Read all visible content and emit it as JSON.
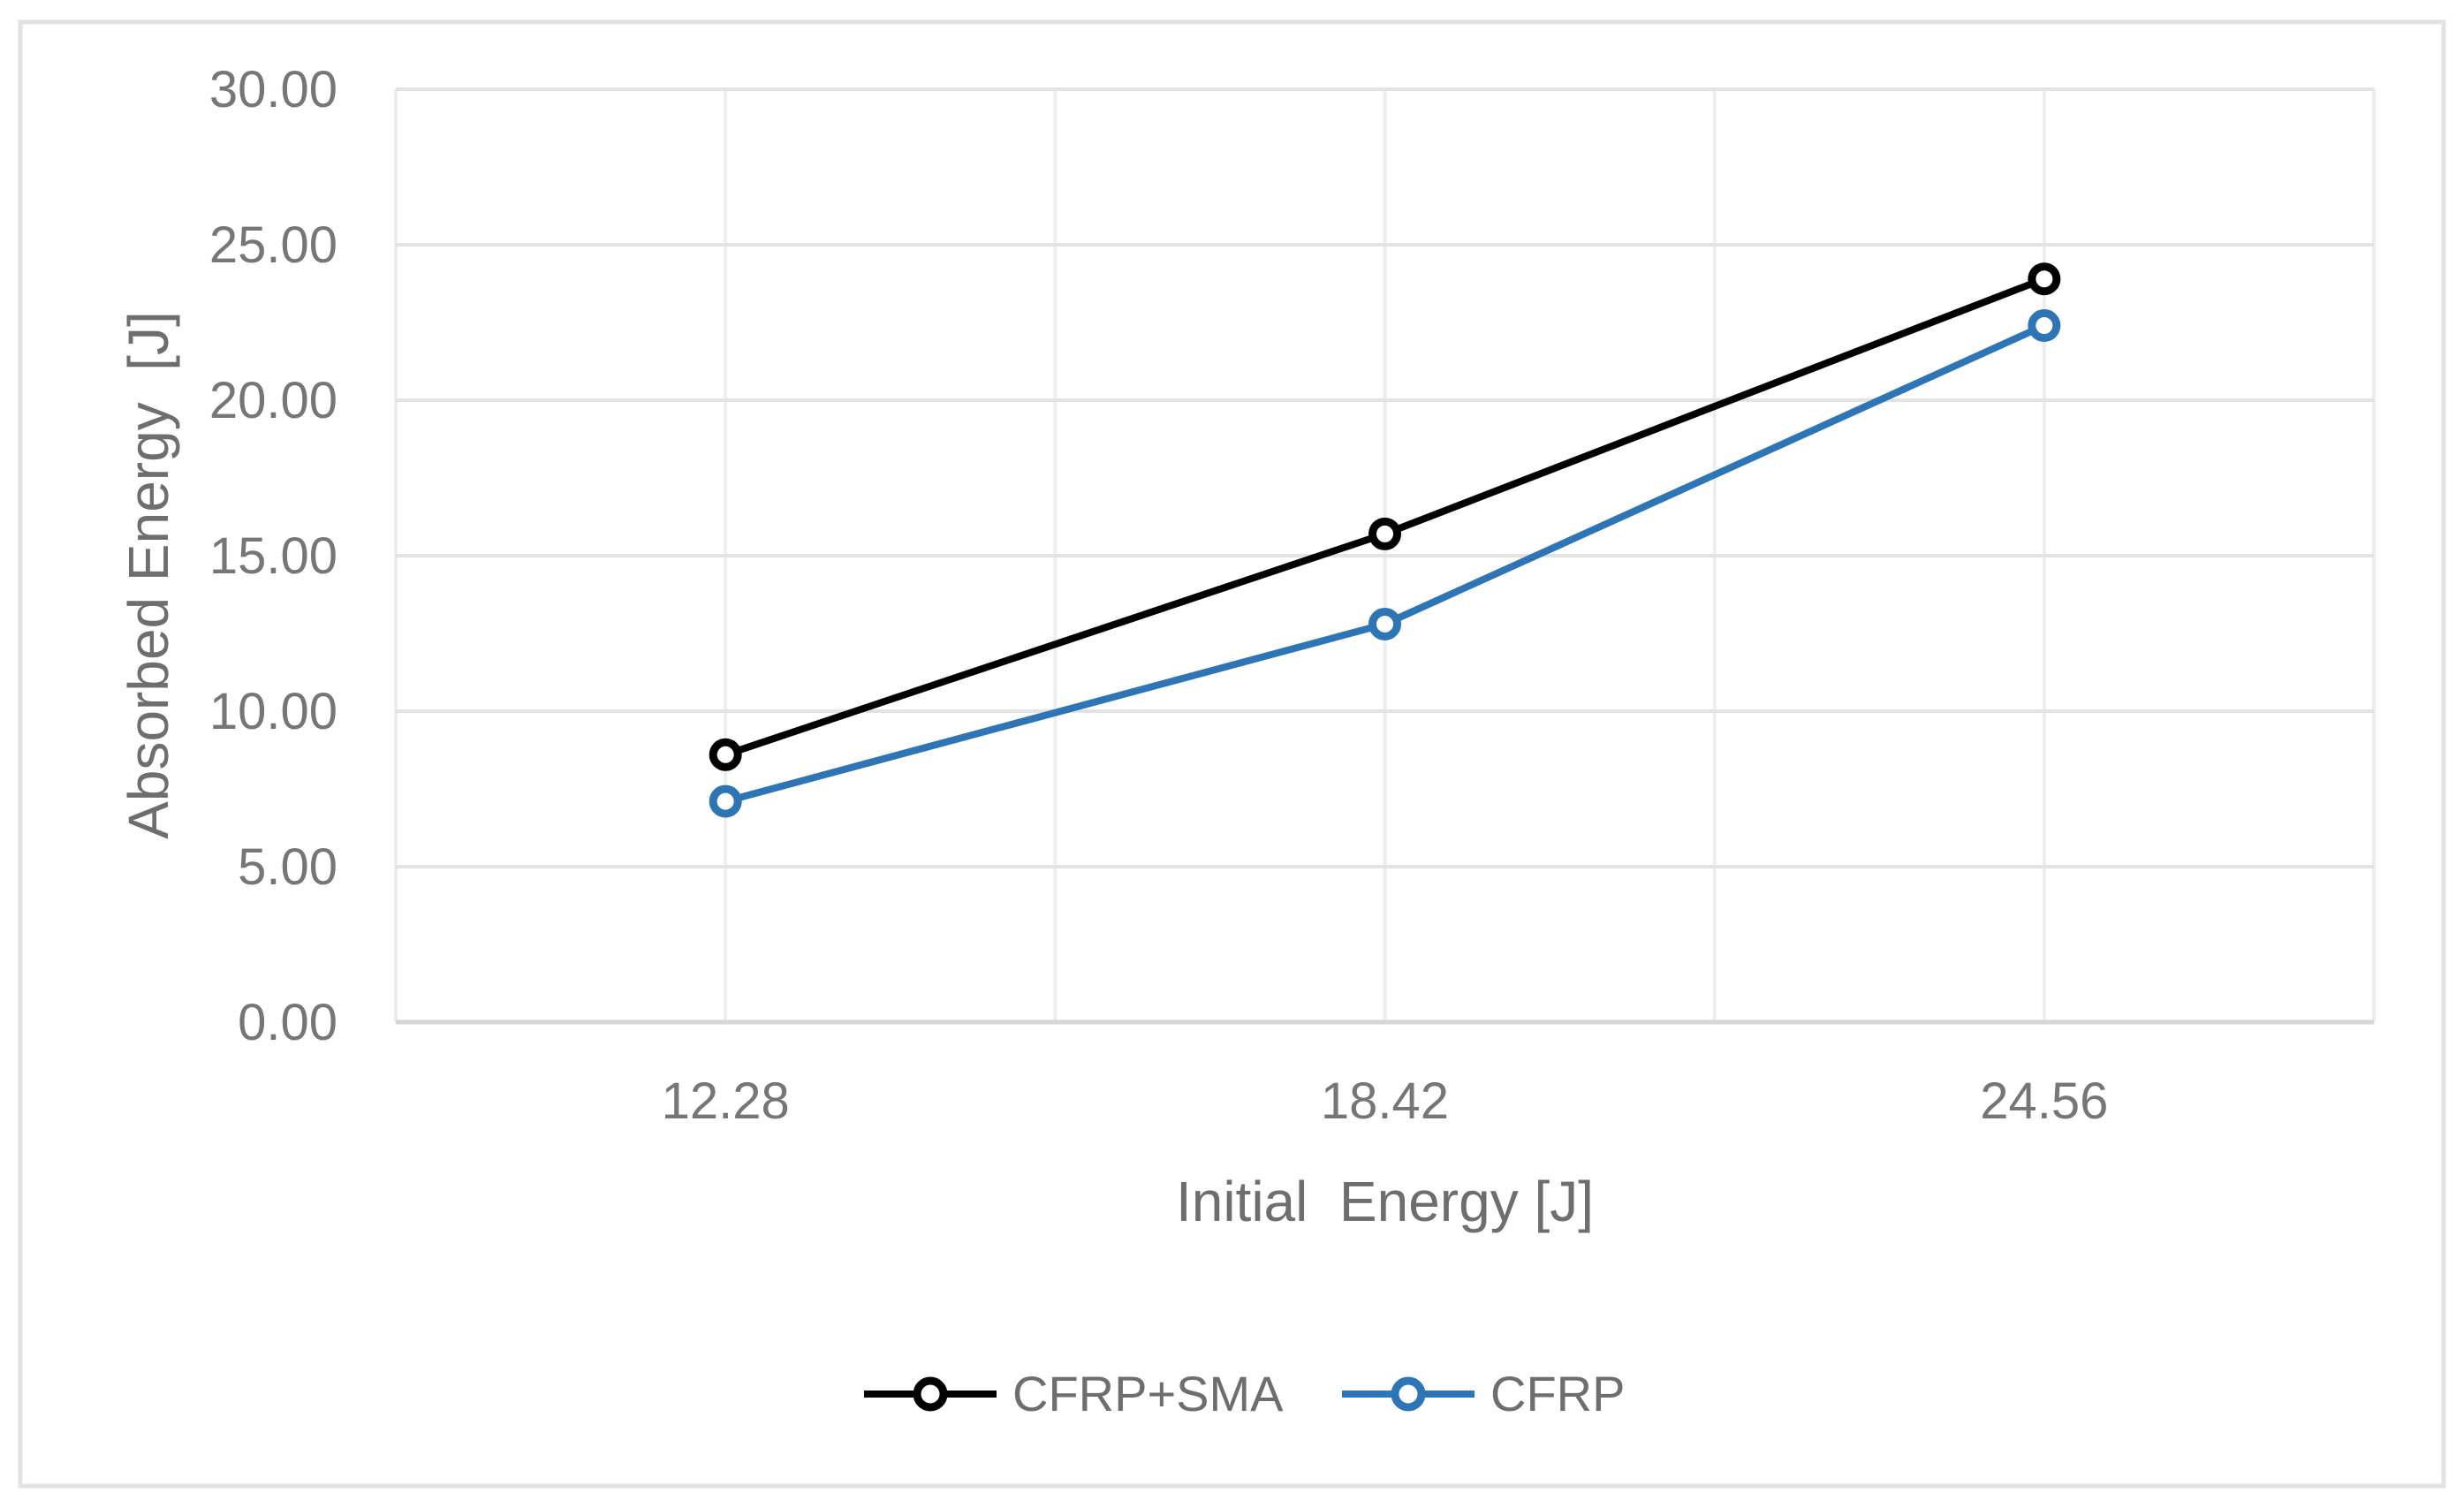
{
  "chart_data": {
    "type": "line",
    "categories": [
      "12.28",
      "18.42",
      "24.56"
    ],
    "series": [
      {
        "name": "CFRP+SMA",
        "color": "#000000",
        "marker": "open-circle",
        "values": [
          8.6,
          15.7,
          23.9
        ]
      },
      {
        "name": "CFRP",
        "color": "#2E75B6",
        "marker": "open-circle",
        "values": [
          7.1,
          12.8,
          22.4
        ]
      }
    ],
    "title": "",
    "xlabel": "Initial  Energy [J]",
    "ylabel": "Absorbed Energy  [J]",
    "ylim": [
      0,
      30
    ],
    "ytick_step": 5,
    "ytick_labels": [
      "0.00",
      "5.00",
      "10.00",
      "15.00",
      "20.00",
      "25.00",
      "30.00"
    ],
    "grid": true,
    "legend_position": "bottom-center"
  },
  "colors": {
    "background": "#ffffff",
    "chart_border": "#e2e2e2",
    "gridline_horizontal": "#e3e3e3",
    "gridline_vertical": "#ededed",
    "axis_line": "#d6d6d6",
    "tick_text": "#767676",
    "title_text": "#6e6e6e",
    "marker_fill": "#ffffff"
  }
}
